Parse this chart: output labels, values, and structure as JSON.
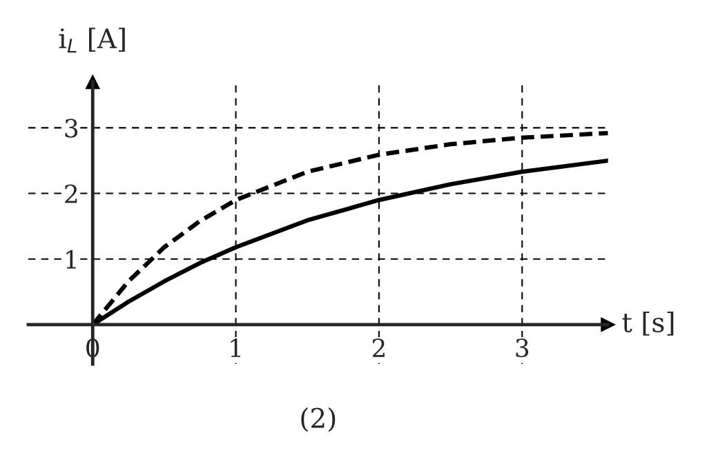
{
  "chart_data": {
    "type": "line",
    "xlabel": "t [s]",
    "ylabel": "i$_{L}$ [A]",
    "x": [
      0,
      0.25,
      0.5,
      0.75,
      1,
      1.5,
      2,
      2.5,
      3,
      3.6
    ],
    "series": [
      {
        "color": "#000000",
        "line_style": "dashed",
        "values": [
          0,
          0.66,
          1.18,
          1.58,
          1.9,
          2.33,
          2.59,
          2.75,
          2.85,
          2.92
        ]
      },
      {
        "color": "#000000",
        "line_style": "solid",
        "values": [
          0,
          0.35,
          0.66,
          0.94,
          1.18,
          1.59,
          1.9,
          2.14,
          2.33,
          2.5
        ]
      }
    ],
    "xlim": [
      -0.45,
      3.6
    ],
    "ylim": [
      -0.6,
      3.7
    ],
    "xticks": [
      0,
      1,
      2,
      3
    ],
    "yticks": [
      1,
      2,
      3
    ],
    "grid": true,
    "legend": false,
    "annotations": [
      "(2)"
    ]
  }
}
